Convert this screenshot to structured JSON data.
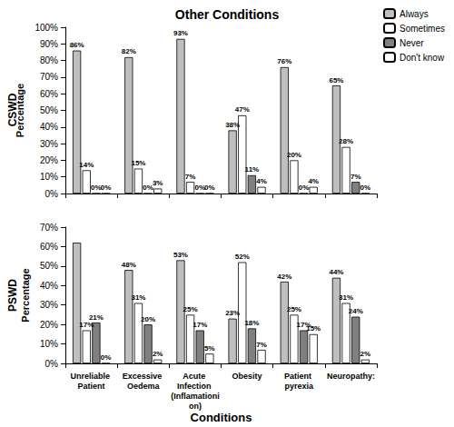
{
  "chart_data": [
    {
      "type": "bar",
      "title": "Other Conditions",
      "annotation": "CSWD",
      "ylabel": "Percentage",
      "categories": [
        "Unreliable Patient",
        "Excessive Oedema",
        "Acute Infection (Inflamationion)",
        "Obesity",
        "Patient pyrexia",
        "Neuropathy:"
      ],
      "series": [
        {
          "name": "Always",
          "color": "#bfbfbf",
          "values": [
            86,
            82,
            93,
            38,
            76,
            65
          ],
          "value_labels": [
            "86%",
            "82%",
            "93%",
            "38%",
            "76%",
            "65%"
          ]
        },
        {
          "name": "Sometimes",
          "color": "#ffffff",
          "values": [
            14,
            15,
            7,
            47,
            20,
            28
          ],
          "value_labels": [
            "14%",
            "15%",
            "7%",
            "47%",
            "20%",
            "28%"
          ]
        },
        {
          "name": "Never",
          "color": "#808080",
          "values": [
            0,
            0,
            0,
            11,
            0,
            7
          ],
          "value_labels": [
            "0%",
            "0%",
            "0%",
            "11%",
            "0%",
            "7%"
          ]
        },
        {
          "name": "Don't know",
          "color": "#ffffff",
          "values": [
            0,
            3,
            0,
            4,
            4,
            0
          ],
          "value_labels": [
            "0%",
            "3%",
            "0%",
            "4%",
            "4%",
            "0%"
          ]
        }
      ],
      "ylim": [
        0,
        100
      ],
      "yticks": [
        {
          "value": 0,
          "label": "0%"
        },
        {
          "value": 10,
          "label": "10%"
        },
        {
          "value": 20,
          "label": "20%"
        },
        {
          "value": 30,
          "label": "30%"
        },
        {
          "value": 40,
          "label": "40%"
        },
        {
          "value": 50,
          "label": "50%"
        },
        {
          "value": 60,
          "label": "60%"
        },
        {
          "value": 70,
          "label": "70%"
        },
        {
          "value": 80,
          "label": "80%"
        },
        {
          "value": 90,
          "label": "90%"
        },
        {
          "value": 100,
          "label": "100%"
        }
      ],
      "grid": false,
      "legend": "right",
      "data_labels": true,
      "tick_labels": "y"
    },
    {
      "type": "bar",
      "annotation": "PSWD",
      "ylabel": "Percentage",
      "xlabel": "Conditions",
      "categories": [
        "Unreliable Patient",
        "Excessive Oedema",
        "Acute Infection (Inflamationion)",
        "Obesity",
        "Patient pyrexia",
        "Neuropathy:"
      ],
      "series": [
        {
          "name": "Always",
          "color": "#bfbfbf",
          "values": [
            62,
            48,
            53,
            23,
            42,
            44
          ],
          "value_labels": [
            null,
            "48%",
            "53%",
            "23%",
            "42%",
            "44%"
          ]
        },
        {
          "name": "Sometimes",
          "color": "#ffffff",
          "values": [
            17,
            31,
            25,
            52,
            25,
            31
          ],
          "value_labels": [
            "17%",
            "31%",
            "25%",
            "52%",
            "25%",
            "31%"
          ]
        },
        {
          "name": "Never",
          "color": "#808080",
          "values": [
            21,
            20,
            17,
            18,
            17,
            24
          ],
          "value_labels": [
            "21%",
            "20%",
            "17%",
            "18%",
            "17%",
            "24%"
          ]
        },
        {
          "name": "Don't know",
          "color": "#ffffff",
          "values": [
            0,
            2,
            5,
            7,
            15,
            2
          ],
          "value_labels": [
            "0%",
            "2%",
            "5%",
            "7%",
            "15%",
            "2%"
          ]
        }
      ],
      "ylim": [
        0,
        70
      ],
      "yticks": [
        {
          "value": 0,
          "label": "0%"
        },
        {
          "value": 10,
          "label": "10%"
        },
        {
          "value": 20,
          "label": "20%"
        },
        {
          "value": 30,
          "label": "30%"
        },
        {
          "value": 40,
          "label": "40%"
        },
        {
          "value": 50,
          "label": "50%"
        },
        {
          "value": 60,
          "label": "60%"
        },
        {
          "value": 70,
          "label": "70%"
        }
      ],
      "grid": false,
      "data_labels": true
    }
  ]
}
